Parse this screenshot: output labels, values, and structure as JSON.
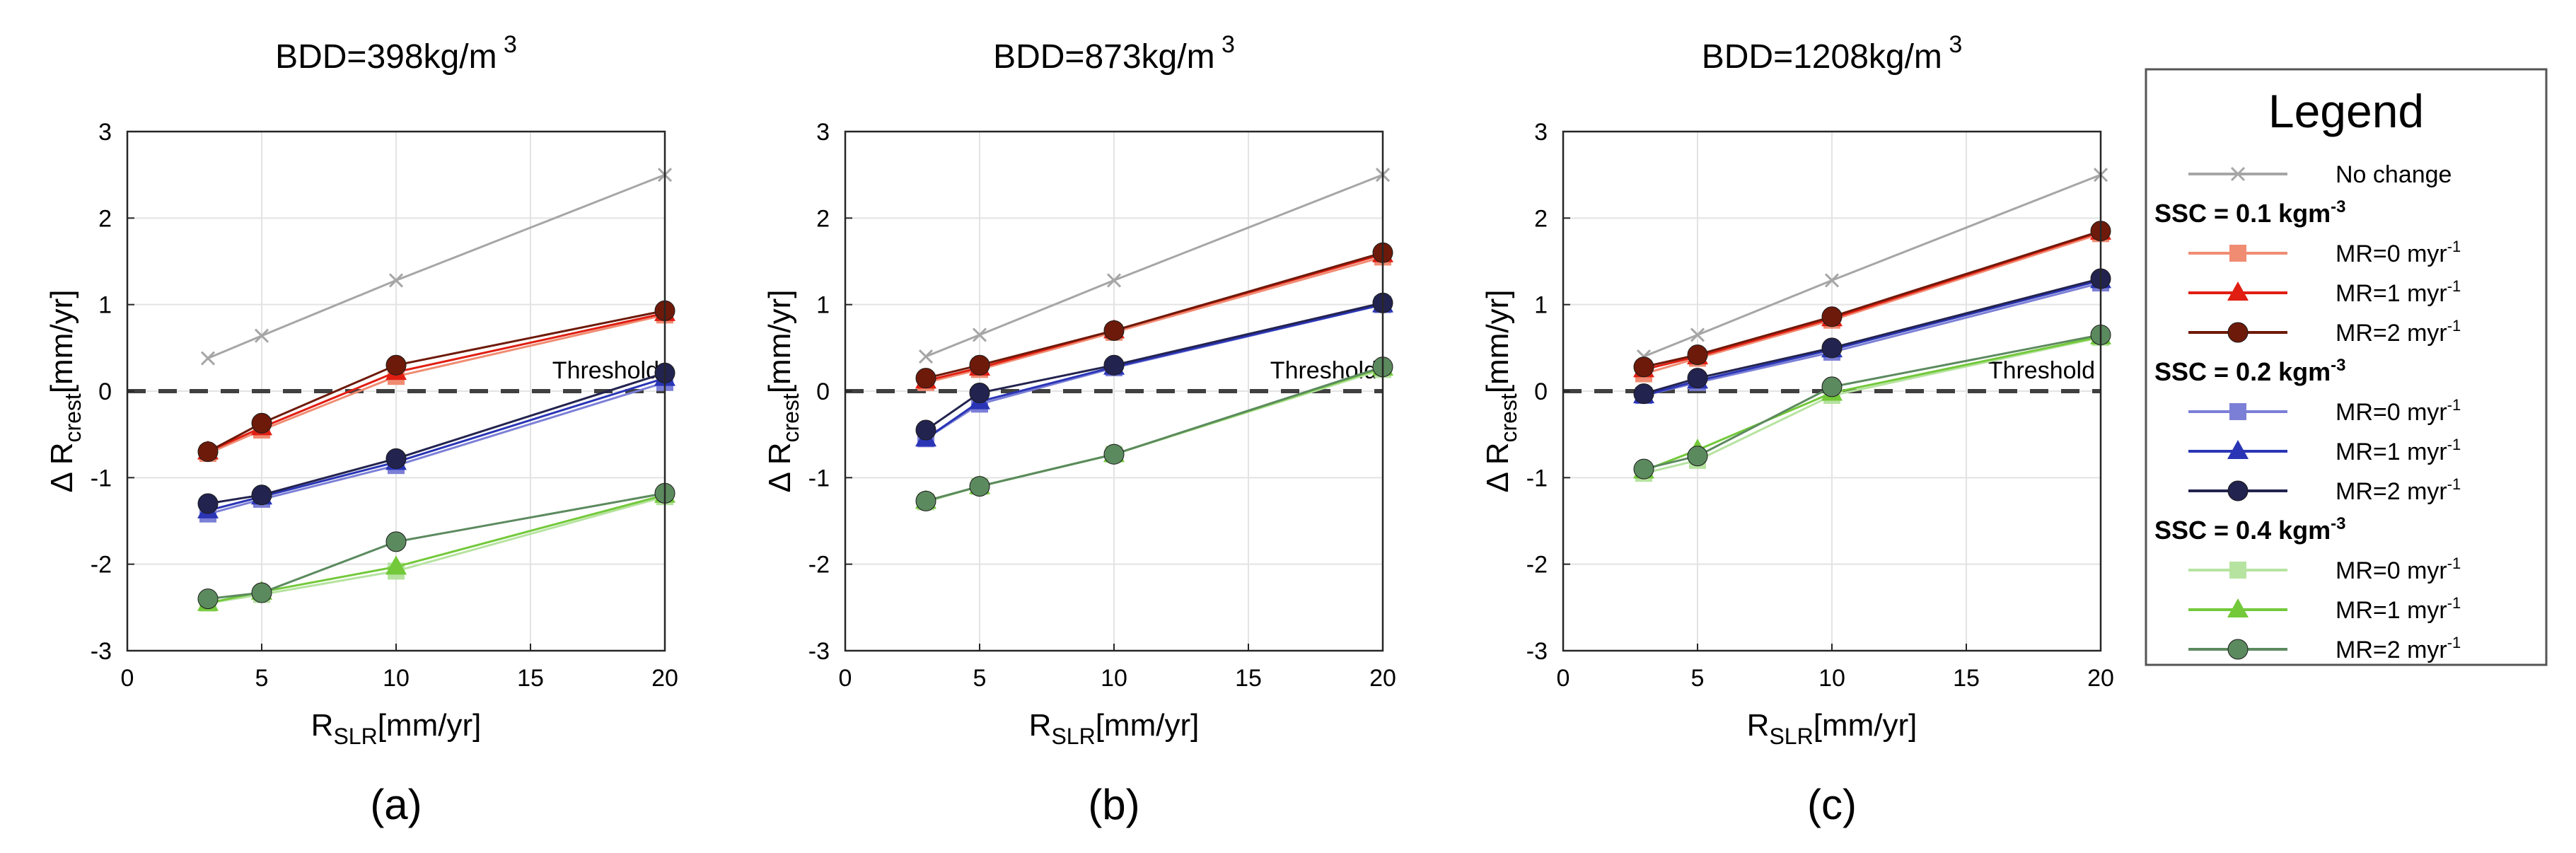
{
  "chart_data": [
    {
      "type": "line",
      "title": "BDD=398kg/m",
      "title_sup": "3",
      "panel_label": "(a)",
      "xlabel": "R",
      "xlabel_sub": "SLR",
      "xlabel_unit": "[mm/yr]",
      "ylabel": "Δ R",
      "ylabel_sub": "crest",
      "ylabel_unit": "[mm/yr]",
      "xlim": [
        0,
        20
      ],
      "ylim": [
        -3,
        3
      ],
      "xticks": [
        0,
        5,
        10,
        15,
        20
      ],
      "yticks": [
        -3,
        -2,
        -1,
        0,
        1,
        2,
        3
      ],
      "grid": true,
      "threshold": {
        "value": 0,
        "label": "Threshold"
      },
      "x": [
        3,
        5,
        10,
        20
      ],
      "series": [
        {
          "name": "No change",
          "values": [
            0.38,
            0.64,
            1.28,
            2.5
          ]
        },
        {
          "name": "SSC = 0.1 kgm-3, MR=0 myr-1",
          "values": [
            -0.72,
            -0.45,
            0.17,
            0.88
          ]
        },
        {
          "name": "SSC = 0.1 kgm-3, MR=1 myr-1",
          "values": [
            -0.7,
            -0.42,
            0.22,
            0.9
          ]
        },
        {
          "name": "SSC = 0.1 kgm-3, MR=2 myr-1",
          "values": [
            -0.7,
            -0.37,
            0.3,
            0.93
          ]
        },
        {
          "name": "SSC = 0.2 kgm-3, MR=0 myr-1",
          "values": [
            -1.42,
            -1.25,
            -0.86,
            0.1
          ]
        },
        {
          "name": "SSC = 0.2 kgm-3, MR=1 myr-1",
          "values": [
            -1.38,
            -1.22,
            -0.82,
            0.15
          ]
        },
        {
          "name": "SSC = 0.2 kgm-3, MR=2 myr-1",
          "values": [
            -1.3,
            -1.2,
            -0.78,
            0.21
          ]
        },
        {
          "name": "SSC = 0.4 kgm-3, MR=0 myr-1",
          "values": [
            -2.45,
            -2.35,
            -2.08,
            -1.22
          ]
        },
        {
          "name": "SSC = 0.4 kgm-3, MR=1 myr-1",
          "values": [
            -2.45,
            -2.32,
            -2.03,
            -1.2
          ]
        },
        {
          "name": "SSC = 0.4 kgm-3, MR=2 myr-1",
          "values": [
            -2.4,
            -2.33,
            -1.74,
            -1.18
          ]
        }
      ]
    },
    {
      "type": "line",
      "title": "BDD=873kg/m",
      "title_sup": "3",
      "panel_label": "(b)",
      "xlabel": "R",
      "xlabel_sub": "SLR",
      "xlabel_unit": "[mm/yr]",
      "ylabel": "Δ R",
      "ylabel_sub": "crest",
      "ylabel_unit": "[mm/yr]",
      "xlim": [
        0,
        20
      ],
      "ylim": [
        -3,
        3
      ],
      "xticks": [
        0,
        5,
        10,
        15,
        20
      ],
      "yticks": [
        -3,
        -2,
        -1,
        0,
        1,
        2,
        3
      ],
      "grid": true,
      "threshold": {
        "value": 0,
        "label": "Threshold"
      },
      "x": [
        3,
        5,
        10,
        20
      ],
      "series": [
        {
          "name": "No change",
          "values": [
            0.4,
            0.65,
            1.28,
            2.5
          ]
        },
        {
          "name": "SSC = 0.1 kgm-3, MR=0 myr-1",
          "values": [
            0.1,
            0.25,
            0.68,
            1.55
          ]
        },
        {
          "name": "SSC = 0.1 kgm-3, MR=1 myr-1",
          "values": [
            0.12,
            0.27,
            0.7,
            1.58
          ]
        },
        {
          "name": "SSC = 0.1 kgm-3, MR=2 myr-1",
          "values": [
            0.15,
            0.3,
            0.7,
            1.6
          ]
        },
        {
          "name": "SSC = 0.2 kgm-3, MR=0 myr-1",
          "values": [
            -0.55,
            -0.15,
            0.27,
            1.0
          ]
        },
        {
          "name": "SSC = 0.2 kgm-3, MR=1 myr-1",
          "values": [
            -0.55,
            -0.12,
            0.28,
            1.0
          ]
        },
        {
          "name": "SSC = 0.2 kgm-3, MR=2 myr-1",
          "values": [
            -0.45,
            -0.02,
            0.3,
            1.02
          ]
        },
        {
          "name": "SSC = 0.4 kgm-3, MR=0 myr-1",
          "values": [
            -1.28,
            -1.1,
            -0.73,
            0.25
          ]
        },
        {
          "name": "SSC = 0.4 kgm-3, MR=1 myr-1",
          "values": [
            -1.27,
            -1.1,
            -0.73,
            0.27
          ]
        },
        {
          "name": "SSC = 0.4 kgm-3, MR=2 myr-1",
          "values": [
            -1.27,
            -1.1,
            -0.73,
            0.28
          ]
        }
      ]
    },
    {
      "type": "line",
      "title": "BDD=1208kg/m",
      "title_sup": "3",
      "panel_label": "(c)",
      "xlabel": "R",
      "xlabel_sub": "SLR",
      "xlabel_unit": "[mm/yr]",
      "ylabel": "Δ R",
      "ylabel_sub": "crest",
      "ylabel_unit": "[mm/yr]",
      "xlim": [
        0,
        20
      ],
      "ylim": [
        -3,
        3
      ],
      "xticks": [
        0,
        5,
        10,
        15,
        20
      ],
      "yticks": [
        -3,
        -2,
        -1,
        0,
        1,
        2,
        3
      ],
      "grid": true,
      "threshold": {
        "value": 0,
        "label": "Threshold"
      },
      "x": [
        3,
        5,
        10,
        20
      ],
      "series": [
        {
          "name": "No change",
          "values": [
            0.4,
            0.65,
            1.28,
            2.5
          ]
        },
        {
          "name": "SSC = 0.1 kgm-3, MR=0 myr-1",
          "values": [
            0.2,
            0.38,
            0.82,
            1.82
          ]
        },
        {
          "name": "SSC = 0.1 kgm-3, MR=1 myr-1",
          "values": [
            0.25,
            0.4,
            0.84,
            1.84
          ]
        },
        {
          "name": "SSC = 0.1 kgm-3, MR=2 myr-1",
          "values": [
            0.28,
            0.42,
            0.86,
            1.85
          ]
        },
        {
          "name": "SSC = 0.2 kgm-3, MR=0 myr-1",
          "values": [
            -0.05,
            0.1,
            0.45,
            1.25
          ]
        },
        {
          "name": "SSC = 0.2 kgm-3, MR=1 myr-1",
          "values": [
            -0.05,
            0.12,
            0.48,
            1.28
          ]
        },
        {
          "name": "SSC = 0.2 kgm-3, MR=2 myr-1",
          "values": [
            -0.03,
            0.15,
            0.5,
            1.3
          ]
        },
        {
          "name": "SSC = 0.4 kgm-3, MR=0 myr-1",
          "values": [
            -0.95,
            -0.8,
            -0.05,
            0.62
          ]
        },
        {
          "name": "SSC = 0.4 kgm-3, MR=1 myr-1",
          "values": [
            -0.92,
            -0.68,
            -0.02,
            0.63
          ]
        },
        {
          "name": "SSC = 0.4 kgm-3, MR=2 myr-1",
          "values": [
            -0.9,
            -0.75,
            0.05,
            0.65
          ]
        }
      ]
    }
  ],
  "series_styles": [
    {
      "color": "#a6a6a6",
      "marker": "x"
    },
    {
      "color": "#f08c72",
      "marker": "square"
    },
    {
      "color": "#e01e12",
      "marker": "triangle"
    },
    {
      "color": "#6e1a0a",
      "marker": "circle"
    },
    {
      "color": "#7b7fd6",
      "marker": "square"
    },
    {
      "color": "#2a35b5",
      "marker": "triangle"
    },
    {
      "color": "#23234f",
      "marker": "circle"
    },
    {
      "color": "#b6e3a0",
      "marker": "square"
    },
    {
      "color": "#73c93a",
      "marker": "triangle"
    },
    {
      "color": "#5c8a5f",
      "marker": "circle"
    }
  ],
  "legend": {
    "title": "Legend",
    "entries": [
      {
        "kind": "item",
        "series": 0,
        "label": "No change"
      },
      {
        "kind": "heading",
        "label": "SSC = 0.1 kgm",
        "sup": "-3"
      },
      {
        "kind": "item",
        "series": 1,
        "label": "MR=0 myr",
        "sup": "-1"
      },
      {
        "kind": "item",
        "series": 2,
        "label": "MR=1 myr",
        "sup": "-1"
      },
      {
        "kind": "item",
        "series": 3,
        "label": "MR=2 myr",
        "sup": "-1"
      },
      {
        "kind": "heading",
        "label": "SSC = 0.2 kgm",
        "sup": "-3"
      },
      {
        "kind": "item",
        "series": 4,
        "label": "MR=0 myr",
        "sup": "-1"
      },
      {
        "kind": "item",
        "series": 5,
        "label": "MR=1 myr",
        "sup": "-1"
      },
      {
        "kind": "item",
        "series": 6,
        "label": "MR=2 myr",
        "sup": "-1"
      },
      {
        "kind": "heading",
        "label": "SSC = 0.4 kgm",
        "sup": "-3"
      },
      {
        "kind": "item",
        "series": 7,
        "label": "MR=0 myr",
        "sup": "-1"
      },
      {
        "kind": "item",
        "series": 8,
        "label": "MR=1 myr",
        "sup": "-1"
      },
      {
        "kind": "item",
        "series": 9,
        "label": "MR=2 myr",
        "sup": "-1"
      }
    ]
  }
}
